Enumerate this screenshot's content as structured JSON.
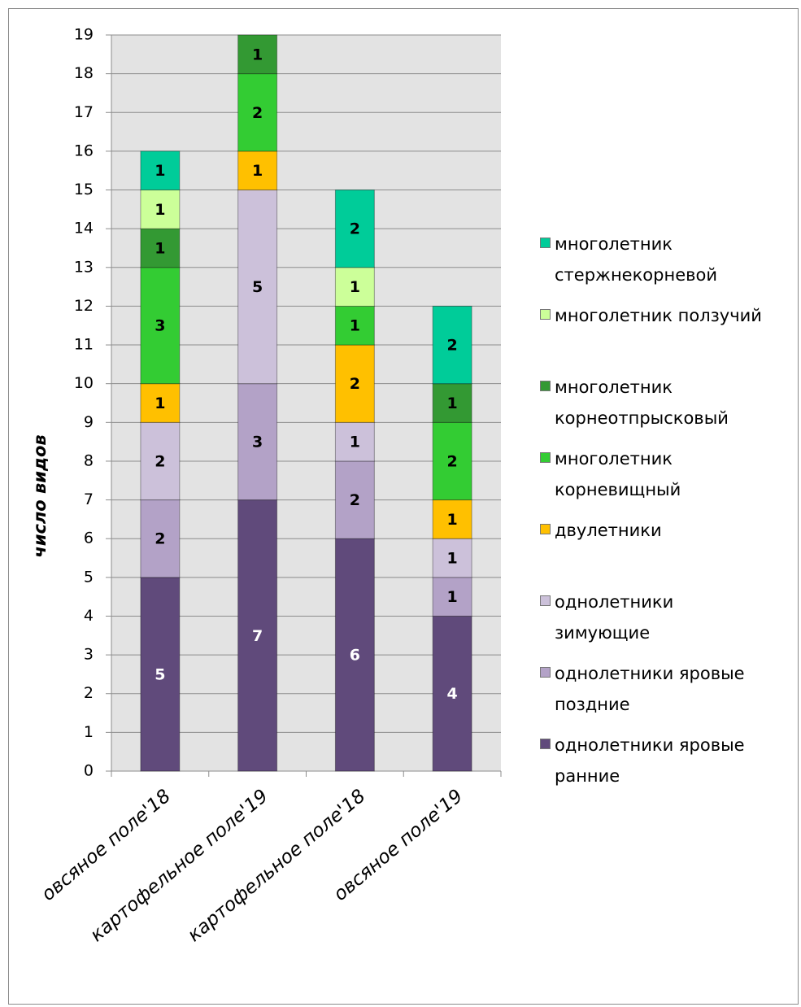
{
  "chart_data": {
    "type": "stacked_bar",
    "y_label": "число видов",
    "categories": [
      "овсяное поле'18",
      "картофельное поле'19",
      "картофельное поле'18",
      "овсяное поле'19"
    ],
    "series": [
      {
        "name": "однолетники яровые ранние",
        "color": "#604a7b",
        "label_color": "#ffffff",
        "values": [
          5,
          7,
          6,
          4
        ]
      },
      {
        "name": "однолетники яровые поздние",
        "color": "#b3a2c7",
        "label_color": "#000000",
        "values": [
          2,
          3,
          2,
          1
        ]
      },
      {
        "name": "однолетники зимующие",
        "color": "#ccc1da",
        "label_color": "#000000",
        "values": [
          2,
          5,
          1,
          1
        ]
      },
      {
        "name": "двулетники",
        "color": "#ffc000",
        "label_color": "#000000",
        "values": [
          1,
          1,
          2,
          1
        ]
      },
      {
        "name": "многолетник корневищный",
        "color": "#33cc33",
        "label_color": "#000000",
        "values": [
          3,
          2,
          1,
          2
        ]
      },
      {
        "name": "многолетник корнеотпрысковый",
        "color": "#339933",
        "label_color": "#000000",
        "values": [
          1,
          1,
          0,
          1
        ]
      },
      {
        "name": "многолетник ползучий",
        "color": "#ccff99",
        "label_color": "#000000",
        "values": [
          1,
          0,
          1,
          0
        ]
      },
      {
        "name": "многолетник стержнекорневой",
        "color": "#00cc99",
        "label_color": "#000000",
        "values": [
          1,
          0,
          2,
          2
        ]
      }
    ],
    "ylim": [
      0,
      19
    ],
    "yticks": [
      0,
      1,
      2,
      3,
      4,
      5,
      6,
      7,
      8,
      9,
      10,
      11,
      12,
      13,
      14,
      15,
      16,
      17,
      18,
      19
    ],
    "grid": true,
    "legend": "right"
  }
}
